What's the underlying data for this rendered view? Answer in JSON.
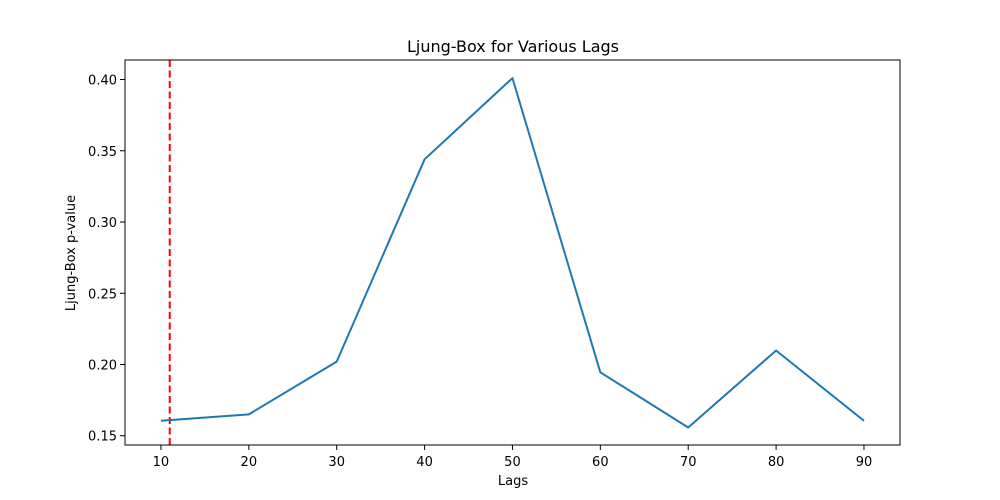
{
  "chart_data": {
    "type": "line",
    "title": "Ljung-Box for Various Lags",
    "xlabel": "Lags",
    "ylabel": "Ljung-Box p-value",
    "x": [
      10,
      20,
      30,
      40,
      50,
      60,
      70,
      80,
      90
    ],
    "series": [
      {
        "values": [
          0.1605,
          0.165,
          0.202,
          0.344,
          0.401,
          0.1945,
          0.1558,
          0.2098,
          0.1605
        ],
        "color": "#1f77b4"
      }
    ],
    "reference_lines": [
      {
        "orientation": "vertical",
        "x": 11,
        "style": "dashed",
        "color": "#ff0000"
      }
    ],
    "xlim": [
      5.91,
      94.1
    ],
    "ylim": [
      0.1435,
      0.4137
    ],
    "xticks": [
      "10",
      "20",
      "30",
      "40",
      "50",
      "60",
      "70",
      "80",
      "90"
    ],
    "yticks": [
      "0.15",
      "0.20",
      "0.25",
      "0.30",
      "0.35",
      "0.40"
    ],
    "grid": false,
    "legend": "none"
  }
}
